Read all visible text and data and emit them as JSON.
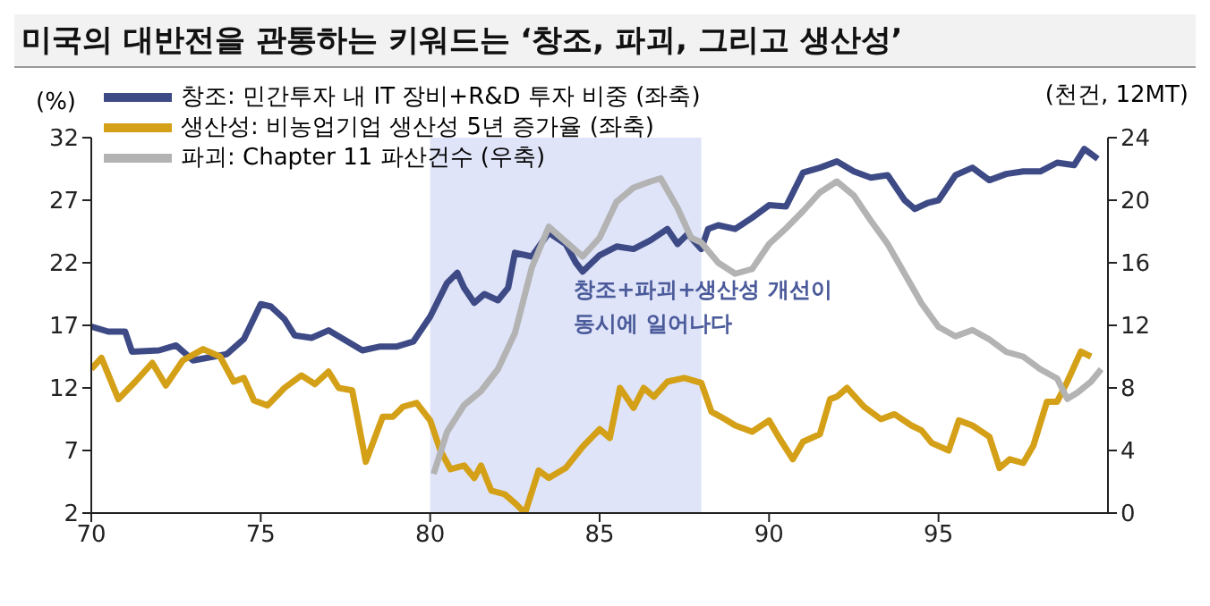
{
  "chart_data": {
    "type": "line",
    "title": "미국의 대반전을 관통하는 키워드는 ‘창조, 파괴, 그리고 생산성’",
    "ylabel": "(%)",
    "y2label": "(천건, 12MT)",
    "xlim": [
      70,
      100
    ],
    "xticks": [
      70,
      75,
      80,
      85,
      90,
      95
    ],
    "ylim": [
      2,
      32
    ],
    "yticks": [
      2,
      7,
      12,
      17,
      22,
      27,
      32
    ],
    "y2lim": [
      0,
      24
    ],
    "y2ticks": [
      0,
      4,
      8,
      12,
      16,
      20,
      24
    ],
    "legend": "top left",
    "grid": false,
    "marker": "none",
    "line_style": "solid",
    "bands": [
      {
        "axis": "x",
        "from": 80,
        "to": 88,
        "label": "창조+파괴+생산성 개선이\n동시에 일어나다",
        "color": "#dfe4f8"
      }
    ],
    "series": [
      {
        "name": "창조: 민간투자 내 IT 장비+R&D 투자 비중 (좌축)",
        "color": "#3d4a85",
        "x": [
          70,
          70.5,
          71,
          71.2,
          72,
          72.5,
          73,
          74,
          74.5,
          75,
          75.3,
          75.7,
          76,
          76.5,
          77,
          77.5,
          78,
          78.5,
          79,
          79.5,
          80,
          80.5,
          80.8,
          81,
          81.3,
          81.6,
          82,
          82.3,
          82.5,
          83,
          83.5,
          84,
          84.3,
          84.5,
          85,
          85.5,
          86,
          86.5,
          87,
          87.3,
          87.6,
          88,
          88.2,
          88.5,
          89,
          89.5,
          90,
          90.5,
          91,
          91.5,
          92,
          92.5,
          93,
          93.5,
          94,
          94.3,
          94.7,
          95,
          95.5,
          96,
          96.5,
          97,
          97.5,
          98,
          98.5,
          99,
          99.3,
          99.7
        ],
        "values": [
          16.9,
          16.5,
          16.5,
          14.9,
          15,
          15.4,
          14.2,
          14.7,
          15.9,
          18.7,
          18.5,
          17.5,
          16.2,
          16,
          16.6,
          15.8,
          15,
          15.3,
          15.3,
          15.7,
          17.7,
          20.4,
          21.2,
          20,
          18.8,
          19.5,
          19,
          20,
          22.8,
          22.5,
          24.4,
          23.5,
          22,
          21.3,
          22.6,
          23.3,
          23.1,
          23.8,
          24.7,
          23.5,
          24.3,
          23.1,
          24.7,
          25,
          24.7,
          25.6,
          26.6,
          26.5,
          29.2,
          29.6,
          30.1,
          29.3,
          28.8,
          29,
          27,
          26.3,
          26.8,
          27,
          29,
          29.6,
          28.6,
          29.1,
          29.3,
          29.3,
          30,
          29.8,
          31.1,
          30.3
        ]
      },
      {
        "name": "생산성: 비농업기업 생산성 5년 증가율 (좌축)",
        "color": "#d4a017",
        "x": [
          70,
          70.3,
          70.8,
          71.3,
          71.8,
          72.2,
          72.7,
          73.3,
          73.8,
          74.2,
          74.5,
          74.8,
          75.2,
          75.7,
          76.2,
          76.6,
          77,
          77.3,
          77.7,
          78.1,
          78.6,
          78.9,
          79.2,
          79.6,
          80,
          80.3,
          80.6,
          81,
          81.3,
          81.5,
          81.8,
          82.2,
          82.5,
          82.8,
          83.2,
          83.5,
          84,
          84.5,
          85,
          85.3,
          85.6,
          86,
          86.3,
          86.6,
          87,
          87.5,
          88,
          88.3,
          88.7,
          89,
          89.5,
          90,
          90.3,
          90.7,
          91,
          91.5,
          91.8,
          92,
          92.3,
          92.8,
          93.3,
          93.7,
          94.2,
          94.5,
          94.8,
          95.3,
          95.6,
          96,
          96.5,
          96.8,
          97.1,
          97.5,
          97.8,
          98.2,
          98.5,
          98.8,
          99.2,
          99.5
        ],
        "values": [
          13.5,
          14.4,
          11.1,
          12.5,
          14,
          12.2,
          14.2,
          15.1,
          14.5,
          12.5,
          12.8,
          11,
          10.6,
          12,
          13,
          12.3,
          13.3,
          12,
          11.8,
          6.1,
          9.7,
          9.7,
          10.5,
          10.8,
          9.4,
          7,
          5.5,
          5.8,
          4.8,
          5.8,
          3.8,
          3.5,
          2.8,
          2,
          5.4,
          4.8,
          5.6,
          7.3,
          8.7,
          8,
          12,
          10.4,
          12,
          11.3,
          12.5,
          12.8,
          12.4,
          10.1,
          9.5,
          9,
          8.5,
          9.4,
          8,
          6.3,
          7.7,
          8.3,
          11.1,
          11.3,
          12,
          10.5,
          9.5,
          9.9,
          9,
          8.6,
          7.6,
          7,
          9.4,
          9,
          8.1,
          5.6,
          6.3,
          6,
          7.4,
          10.9,
          10.9,
          12.5,
          14.9,
          14.5
        ]
      },
      {
        "name": "파괴: Chapter 11 파산건수 (우축)",
        "color": "#b3b3b3",
        "axis": "y2",
        "x": [
          80.1,
          80.5,
          81,
          81.5,
          82,
          82.5,
          83,
          83.5,
          84.5,
          85,
          85.5,
          86,
          86.5,
          86.8,
          87.3,
          87.7,
          88,
          88.5,
          89,
          89.5,
          90,
          90.5,
          91,
          91.5,
          92,
          92.5,
          93,
          93.5,
          94,
          94.5,
          95,
          95.5,
          96,
          96.5,
          97,
          97.5,
          98,
          98.5,
          98.8,
          99.1,
          99.5,
          99.8
        ],
        "values": [
          2.5,
          5.2,
          6.9,
          7.8,
          9.2,
          11.5,
          15.7,
          18.3,
          16.4,
          17.6,
          19.9,
          20.8,
          21.2,
          21.4,
          19.5,
          17.6,
          17.3,
          16,
          15.3,
          15.6,
          17.2,
          18.2,
          19.3,
          20.5,
          21.2,
          20.3,
          18.7,
          17.2,
          15.3,
          13.4,
          11.9,
          11.3,
          11.7,
          11.1,
          10.3,
          10,
          9.2,
          8.6,
          7.3,
          7.7,
          8.4,
          9.2
        ]
      }
    ]
  }
}
